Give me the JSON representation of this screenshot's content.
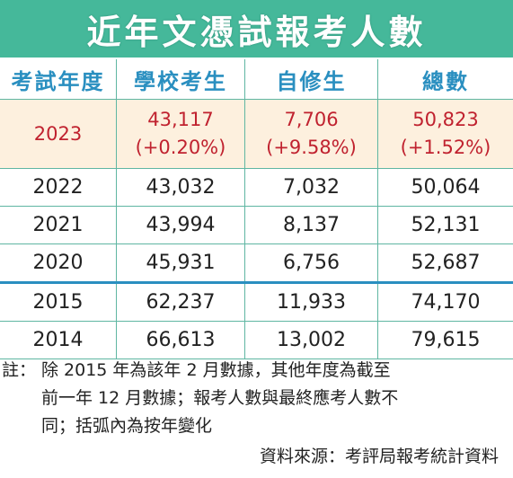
{
  "title": "近年文憑試報考人數",
  "header": {
    "year": "考試年度",
    "school": "學校考生",
    "private": "自修生",
    "total": "總數"
  },
  "highlight_row": {
    "year": "2023",
    "school": "43,117",
    "school_change": "(+0.20%)",
    "private": "7,706",
    "private_change": "(+9.58%)",
    "total": "50,823",
    "total_change": "(+1.52%)"
  },
  "rows": [
    {
      "year": "2022",
      "school": "43,032",
      "private": "7,032",
      "total": "50,064"
    },
    {
      "year": "2021",
      "school": "43,994",
      "private": "8,137",
      "total": "52,131"
    },
    {
      "year": "2020",
      "school": "45,931",
      "private": "6,756",
      "total": "52,687"
    },
    {
      "year": "2015",
      "school": "62,237",
      "private": "11,933",
      "total": "74,170"
    },
    {
      "year": "2014",
      "school": "66,613",
      "private": "13,002",
      "total": "79,615"
    }
  ],
  "notes": {
    "label": "註：",
    "line1": "除 2015 年為該年 2 月數據，其他年度為截至",
    "line2": "前一年 12 月數據；報考人數與最終應考人數不",
    "line3": "同；括弧內為按年變化"
  },
  "source": "資料來源：考評局報考統計資料",
  "colors": {
    "title_bg": "#45b89a",
    "header_text": "#2a8fc0",
    "highlight_bg": "#fdf0de",
    "highlight_text": "#c0222f",
    "grid": "#5fb6a2",
    "divider": "#2a8fc0"
  }
}
